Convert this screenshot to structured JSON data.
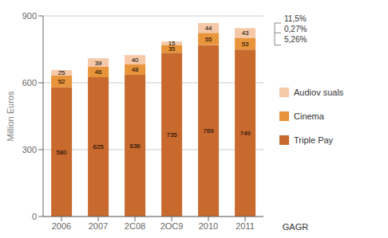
{
  "chart_data": {
    "type": "bar",
    "stacked": true,
    "categories": [
      "2006",
      "2007",
      "2C08",
      "2OC9",
      "2010",
      "2011"
    ],
    "series": [
      {
        "name": "Triple Pay",
        "color": "#c8692e",
        "values": [
          580,
          625,
          636,
          735,
          769,
          749
        ]
      },
      {
        "name": "Cinema",
        "color": "#e8943a",
        "values": [
          52,
          46,
          48,
          35,
          55,
          53
        ]
      },
      {
        "name": "Audiov suals",
        "color": "#f5c8a8",
        "values": [
          25,
          39,
          40,
          15,
          44,
          43
        ]
      }
    ],
    "ylabel": "Million Euros",
    "ylim": [
      0,
      900
    ],
    "yticks": [
      0,
      300,
      600,
      900
    ],
    "grid": true,
    "data_labels": true,
    "annotations": [
      "GAGR",
      "11,5%",
      "0,27%",
      "5,26%"
    ]
  }
}
